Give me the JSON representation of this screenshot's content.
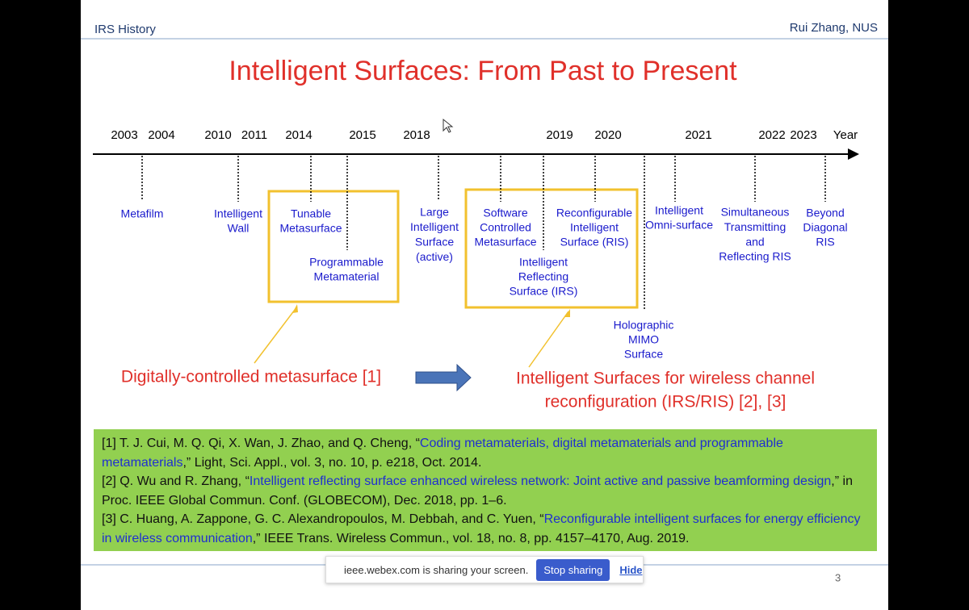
{
  "header": {
    "left": "IRS History",
    "right": "Rui Zhang, NUS"
  },
  "title": "Intelligent Surfaces: From Past to Present",
  "timeline": {
    "axis_label": "Year",
    "years": [
      "2003",
      "2004",
      "2010",
      "2011",
      "2014",
      "2015",
      "2018",
      "2019",
      "2020",
      "2021",
      "2022",
      "2023"
    ],
    "events": [
      {
        "label": [
          "Metafilm"
        ]
      },
      {
        "label": [
          "Intelligent",
          "Wall"
        ]
      },
      {
        "label": [
          "Tunable",
          "Metasurface"
        ]
      },
      {
        "label": [
          "Programmable",
          "Metamaterial"
        ]
      },
      {
        "label": [
          "Large",
          "Intelligent",
          "Surface",
          "(active)"
        ]
      },
      {
        "label": [
          "Software",
          "Controlled",
          "Metasurface"
        ]
      },
      {
        "label": [
          "Intelligent",
          "Reflecting",
          "Surface (IRS)"
        ]
      },
      {
        "label": [
          "Reconfigurable",
          "Intelligent",
          "Surface (RIS)"
        ]
      },
      {
        "label": [
          "Holographic",
          "MIMO",
          "Surface"
        ]
      },
      {
        "label": [
          "Intelligent",
          "Omni-surface"
        ]
      },
      {
        "label": [
          "Simultaneous",
          "Transmitting",
          "and",
          "Reflecting RIS"
        ]
      },
      {
        "label": [
          "Beyond",
          "Diagonal",
          "RIS"
        ]
      }
    ]
  },
  "annotations": {
    "left": "Digitally-controlled metasurface [1]",
    "right": [
      "Intelligent Surfaces for wireless channel",
      "reconfiguration (IRS/RIS) [2], [3]"
    ]
  },
  "references": [
    {
      "prefix": "[1] T. J. Cui, M. Q. Qi, X. Wan, J. Zhao, and Q. Cheng, “",
      "link": "Coding metamaterials, digital metamaterials and programmable metamaterials",
      "suffix": ",” Light, Sci. Appl., vol. 3, no. 10, p. e218, Oct. 2014."
    },
    {
      "prefix": "[2] Q. Wu and R. Zhang, “",
      "link": "Intelligent reflecting surface enhanced wireless network: Joint active and passive beamforming design",
      "suffix": ",” in Proc. IEEE Global Commun. Conf. (GLOBECOM), Dec. 2018, pp. 1–6."
    },
    {
      "prefix": "[3] C. Huang, A. Zappone, G. C. Alexandropoulos, M. Debbah, and C. Yuen, “",
      "link": "Reconfigurable intelligent surfaces for energy efficiency in wireless communication",
      "suffix": ",” IEEE Trans. Wireless Commun., vol. 18, no. 8, pp. 4157–4170, Aug. 2019."
    }
  ],
  "share_bar": {
    "message": "ieee.webex.com is sharing your screen.",
    "stop": "Stop sharing",
    "hide": "Hide"
  },
  "page_number": "3"
}
